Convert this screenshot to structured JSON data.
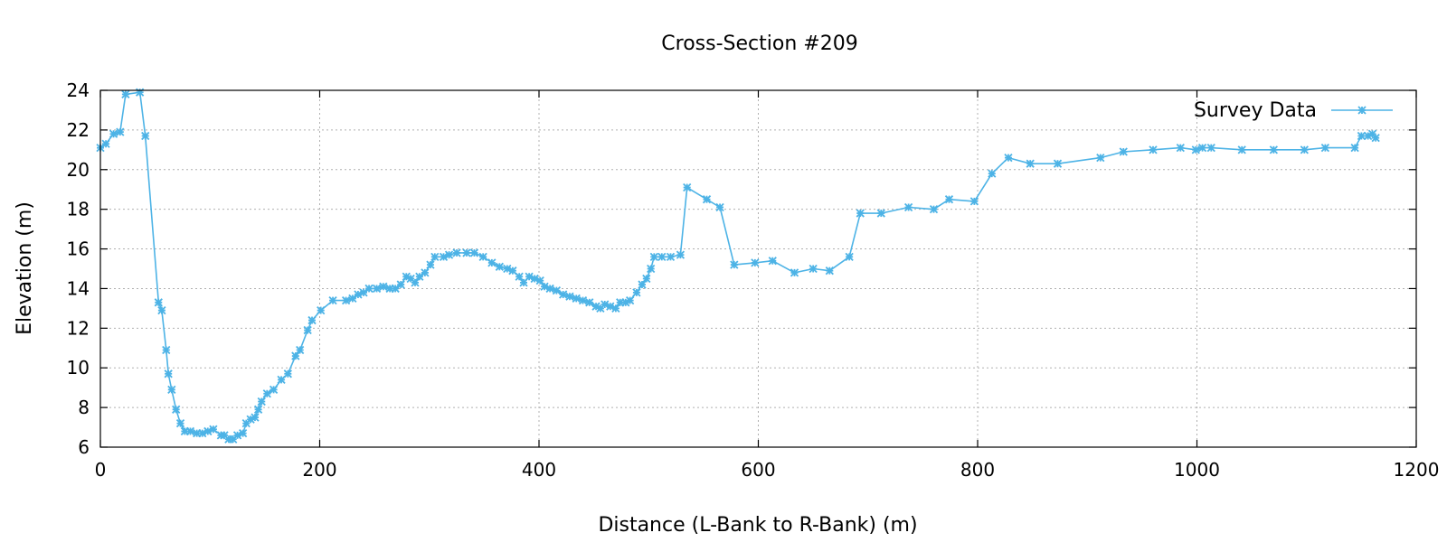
{
  "chart_data": {
    "type": "line",
    "title": "Cross-Section #209",
    "xlabel": "Distance (L-Bank to R-Bank) (m)",
    "ylabel": "Elevation (m)",
    "xlim": [
      0,
      1200
    ],
    "ylim": [
      6,
      24
    ],
    "xticks": [
      0,
      200,
      400,
      600,
      800,
      1000,
      1200
    ],
    "yticks": [
      6,
      8,
      10,
      12,
      14,
      16,
      18,
      20,
      22,
      24
    ],
    "grid": true,
    "legend_position": "top-right",
    "series": [
      {
        "name": "Survey Data",
        "color": "#4db3e6",
        "marker": "asterisk",
        "points": [
          [
            0,
            21.1
          ],
          [
            5,
            21.3
          ],
          [
            12,
            21.8
          ],
          [
            18,
            21.9
          ],
          [
            23,
            23.8
          ],
          [
            36,
            23.9
          ],
          [
            41,
            21.7
          ],
          [
            53,
            13.3
          ],
          [
            56,
            12.9
          ],
          [
            60,
            10.9
          ],
          [
            62,
            9.7
          ],
          [
            65,
            8.9
          ],
          [
            69,
            7.9
          ],
          [
            73,
            7.2
          ],
          [
            77,
            6.8
          ],
          [
            82,
            6.8
          ],
          [
            88,
            6.7
          ],
          [
            93,
            6.7
          ],
          [
            98,
            6.8
          ],
          [
            103,
            6.9
          ],
          [
            110,
            6.6
          ],
          [
            113,
            6.6
          ],
          [
            117,
            6.4
          ],
          [
            121,
            6.4
          ],
          [
            125,
            6.6
          ],
          [
            130,
            6.7
          ],
          [
            133,
            7.2
          ],
          [
            137,
            7.4
          ],
          [
            141,
            7.5
          ],
          [
            144,
            7.9
          ],
          [
            147,
            8.3
          ],
          [
            152,
            8.7
          ],
          [
            158,
            8.9
          ],
          [
            165,
            9.4
          ],
          [
            171,
            9.7
          ],
          [
            178,
            10.6
          ],
          [
            182,
            10.9
          ],
          [
            189,
            11.9
          ],
          [
            193,
            12.4
          ],
          [
            201,
            12.9
          ],
          [
            212,
            13.4
          ],
          [
            224,
            13.4
          ],
          [
            230,
            13.5
          ],
          [
            235,
            13.7
          ],
          [
            240,
            13.8
          ],
          [
            245,
            14.0
          ],
          [
            252,
            14.0
          ],
          [
            258,
            14.1
          ],
          [
            264,
            14.0
          ],
          [
            269,
            14.0
          ],
          [
            274,
            14.2
          ],
          [
            279,
            14.6
          ],
          [
            283,
            14.5
          ],
          [
            287,
            14.3
          ],
          [
            291,
            14.6
          ],
          [
            296,
            14.8
          ],
          [
            301,
            15.2
          ],
          [
            305,
            15.6
          ],
          [
            313,
            15.6
          ],
          [
            318,
            15.7
          ],
          [
            325,
            15.8
          ],
          [
            334,
            15.8
          ],
          [
            341,
            15.8
          ],
          [
            349,
            15.6
          ],
          [
            357,
            15.3
          ],
          [
            364,
            15.1
          ],
          [
            371,
            15.0
          ],
          [
            376,
            14.9
          ],
          [
            382,
            14.6
          ],
          [
            386,
            14.3
          ],
          [
            391,
            14.6
          ],
          [
            396,
            14.5
          ],
          [
            401,
            14.4
          ],
          [
            405,
            14.1
          ],
          [
            410,
            14.0
          ],
          [
            416,
            13.9
          ],
          [
            422,
            13.7
          ],
          [
            428,
            13.6
          ],
          [
            434,
            13.5
          ],
          [
            440,
            13.4
          ],
          [
            446,
            13.3
          ],
          [
            452,
            13.1
          ],
          [
            456,
            13.0
          ],
          [
            460,
            13.2
          ],
          [
            465,
            13.1
          ],
          [
            470,
            13.0
          ],
          [
            474,
            13.3
          ],
          [
            479,
            13.3
          ],
          [
            483,
            13.4
          ],
          [
            489,
            13.8
          ],
          [
            494,
            14.2
          ],
          [
            498,
            14.5
          ],
          [
            502,
            15.0
          ],
          [
            505,
            15.6
          ],
          [
            512,
            15.6
          ],
          [
            520,
            15.6
          ],
          [
            529,
            15.7
          ],
          [
            535,
            19.1
          ],
          [
            553,
            18.5
          ],
          [
            565,
            18.1
          ],
          [
            578,
            15.2
          ],
          [
            597,
            15.3
          ],
          [
            613,
            15.4
          ],
          [
            633,
            14.8
          ],
          [
            650,
            15.0
          ],
          [
            665,
            14.9
          ],
          [
            683,
            15.6
          ],
          [
            693,
            17.8
          ],
          [
            712,
            17.8
          ],
          [
            737,
            18.1
          ],
          [
            760,
            18.0
          ],
          [
            774,
            18.5
          ],
          [
            797,
            18.4
          ],
          [
            813,
            19.8
          ],
          [
            828,
            20.6
          ],
          [
            848,
            20.3
          ],
          [
            873,
            20.3
          ],
          [
            912,
            20.6
          ],
          [
            933,
            20.9
          ],
          [
            960,
            21.0
          ],
          [
            985,
            21.1
          ],
          [
            999,
            21.0
          ],
          [
            1005,
            21.1
          ],
          [
            1013,
            21.1
          ],
          [
            1041,
            21.0
          ],
          [
            1070,
            21.0
          ],
          [
            1098,
            21.0
          ],
          [
            1117,
            21.1
          ],
          [
            1144,
            21.1
          ],
          [
            1150,
            21.7
          ],
          [
            1156,
            21.7
          ],
          [
            1160,
            21.8
          ],
          [
            1163,
            21.6
          ]
        ]
      }
    ]
  }
}
